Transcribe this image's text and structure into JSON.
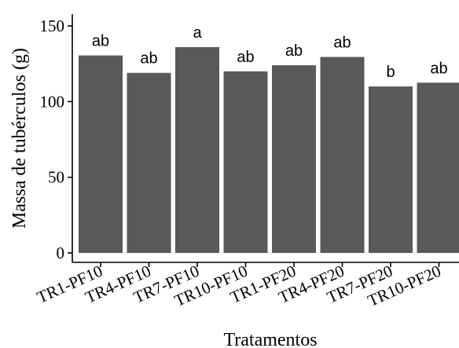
{
  "chart_data": {
    "type": "bar",
    "title": "",
    "xlabel": "Tratamentos",
    "ylabel": "Massa de tubérculos (g)",
    "categories": [
      "TR1-PF10",
      "TR4-PF10",
      "TR7-PF10",
      "TR10-PF10",
      "TR1-PF20",
      "TR4-PF20",
      "TR7-PF20",
      "TR10-PF20"
    ],
    "values": [
      130.5,
      119,
      136,
      120,
      124,
      129.5,
      110,
      112.5
    ],
    "labels": [
      "ab",
      "ab",
      "a",
      "ab",
      "ab",
      "ab",
      "b",
      "ab"
    ],
    "ylim": [
      0,
      150
    ],
    "yticks": [
      0,
      50,
      100,
      150
    ],
    "grid": false,
    "bar_color": "#595959"
  }
}
